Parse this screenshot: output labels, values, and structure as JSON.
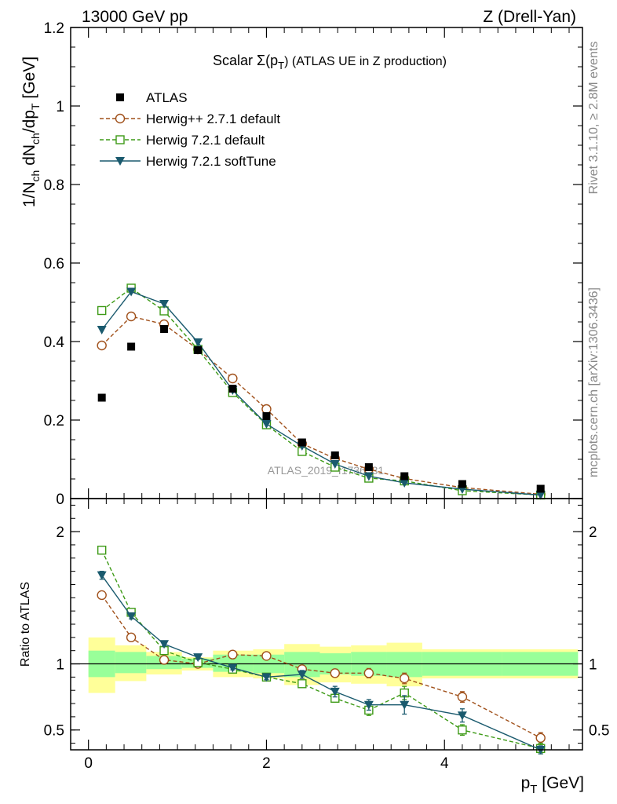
{
  "header": {
    "left": "13000 GeV pp",
    "right": "Z (Drell-Yan)"
  },
  "side_labels": {
    "top": "Rivet 3.1.10, ≥ 2.8M events",
    "bottom": "mcplots.cern.ch [arXiv:1306.3436]"
  },
  "watermark": "ATLAS_2019_I1736531",
  "chart_data": {
    "type": "scatter",
    "title": {
      "prefix": "Scalar Σ(p",
      "sub": "T",
      "suffix": ") (ATLAS UE in Z production)"
    },
    "xlabel": {
      "main": "p",
      "sub": "T",
      "unit": " [GeV]"
    },
    "ylabel": {
      "parts": [
        {
          "t": "1/N"
        },
        {
          "t": "ch",
          "sub": true
        },
        {
          "t": " dN"
        },
        {
          "t": "ch",
          "sub": true
        },
        {
          "t": "/dp"
        },
        {
          "t": "T",
          "sub": true
        },
        {
          "t": " [GeV]"
        }
      ]
    },
    "ratio_ylabel": "Ratio to ATLAS",
    "xlim": [
      -0.2,
      5.55
    ],
    "ylim_main": [
      0,
      1.2
    ],
    "ylim_ratio": [
      0.35,
      2.25
    ],
    "x_ticks": [
      0,
      2,
      4
    ],
    "x_tick_labels": [
      "0",
      "2",
      "4"
    ],
    "main_y_ticks": [
      0,
      0.2,
      0.4,
      0.6,
      0.8,
      1,
      1.2
    ],
    "main_y_tick_labels": [
      "0",
      "0.2",
      "0.4",
      "0.6",
      "0.8",
      "1",
      "1.2"
    ],
    "ratio_y_ticks": [
      0.5,
      1,
      2
    ],
    "ratio_y_tick_labels": [
      "0.5",
      "1",
      "2"
    ],
    "bins": [
      [
        0,
        0.3
      ],
      [
        0.3,
        0.65
      ],
      [
        0.65,
        1.05
      ],
      [
        1.05,
        1.4
      ],
      [
        1.4,
        1.85
      ],
      [
        1.85,
        2.2
      ],
      [
        2.2,
        2.6
      ],
      [
        2.6,
        2.95
      ],
      [
        2.95,
        3.35
      ],
      [
        3.35,
        3.75
      ],
      [
        3.75,
        4.65
      ],
      [
        4.65,
        5.5
      ]
    ],
    "x": [
      0.15,
      0.48,
      0.85,
      1.23,
      1.62,
      2.0,
      2.4,
      2.77,
      3.15,
      3.55,
      4.2,
      5.08
    ],
    "data": {
      "name": "ATLAS",
      "values": [
        0.257,
        0.387,
        0.432,
        0.378,
        0.28,
        0.21,
        0.143,
        0.11,
        0.08,
        0.057,
        0.037,
        0.025
      ],
      "band_inner": [
        [
          0.9,
          1.1
        ],
        [
          0.93,
          1.09
        ],
        [
          0.96,
          1.06
        ],
        [
          0.97,
          1.04
        ],
        [
          0.94,
          1.07
        ],
        [
          0.93,
          1.07
        ],
        [
          0.9,
          1.09
        ],
        [
          0.92,
          1.08
        ],
        [
          0.91,
          1.09
        ],
        [
          0.9,
          1.09
        ],
        [
          0.91,
          1.09
        ],
        [
          0.91,
          1.09
        ]
      ],
      "band_outer": [
        [
          0.78,
          1.2
        ],
        [
          0.87,
          1.14
        ],
        [
          0.92,
          1.09
        ],
        [
          0.95,
          1.05
        ],
        [
          0.9,
          1.1
        ],
        [
          0.89,
          1.11
        ],
        [
          0.84,
          1.15
        ],
        [
          0.86,
          1.13
        ],
        [
          0.85,
          1.14
        ],
        [
          0.83,
          1.16
        ],
        [
          0.89,
          1.11
        ],
        [
          0.89,
          1.11
        ]
      ]
    },
    "series": [
      {
        "name": "Herwig++ 2.7.1 default",
        "color": "#a0501a",
        "marker": "circle",
        "dashed": true,
        "values": [
          0.39,
          0.464,
          0.444,
          0.38,
          0.306,
          0.228,
          0.14,
          0.102,
          0.075,
          0.051,
          0.028,
          0.011
        ],
        "ratio": [
          1.52,
          1.2,
          1.03,
          1.0,
          1.07,
          1.06,
          0.96,
          0.93,
          0.93,
          0.89,
          0.75,
          0.44
        ],
        "ratio_err": [
          0.02,
          0.02,
          0.015,
          0.015,
          0.015,
          0.02,
          0.02,
          0.03,
          0.035,
          0.04,
          0.04,
          0.04
        ]
      },
      {
        "name": "Herwig 7.2.1 default",
        "color": "#3d9a16",
        "marker": "square",
        "dashed": true,
        "values": [
          0.479,
          0.536,
          0.478,
          0.38,
          0.27,
          0.188,
          0.12,
          0.08,
          0.052,
          0.045,
          0.02,
          0.009
        ],
        "ratio": [
          1.86,
          1.39,
          1.1,
          1.01,
          0.96,
          0.9,
          0.85,
          0.74,
          0.65,
          0.78,
          0.5,
          0.36
        ],
        "ratio_err": [
          0.03,
          0.02,
          0.015,
          0.015,
          0.015,
          0.02,
          0.02,
          0.03,
          0.04,
          0.05,
          0.04,
          0.04
        ]
      },
      {
        "name": "Herwig 7.2.1 softTune",
        "color": "#1a5a6e",
        "marker": "triangle",
        "dashed": false,
        "values": [
          0.43,
          0.527,
          0.496,
          0.398,
          0.276,
          0.19,
          0.134,
          0.088,
          0.057,
          0.04,
          0.024,
          0.009
        ],
        "ratio": [
          1.67,
          1.36,
          1.15,
          1.05,
          0.97,
          0.9,
          0.92,
          0.79,
          0.69,
          0.69,
          0.61,
          0.35
        ],
        "ratio_err": [
          0.03,
          0.02,
          0.015,
          0.015,
          0.015,
          0.02,
          0.03,
          0.04,
          0.04,
          0.07,
          0.05,
          0.03
        ]
      }
    ]
  }
}
